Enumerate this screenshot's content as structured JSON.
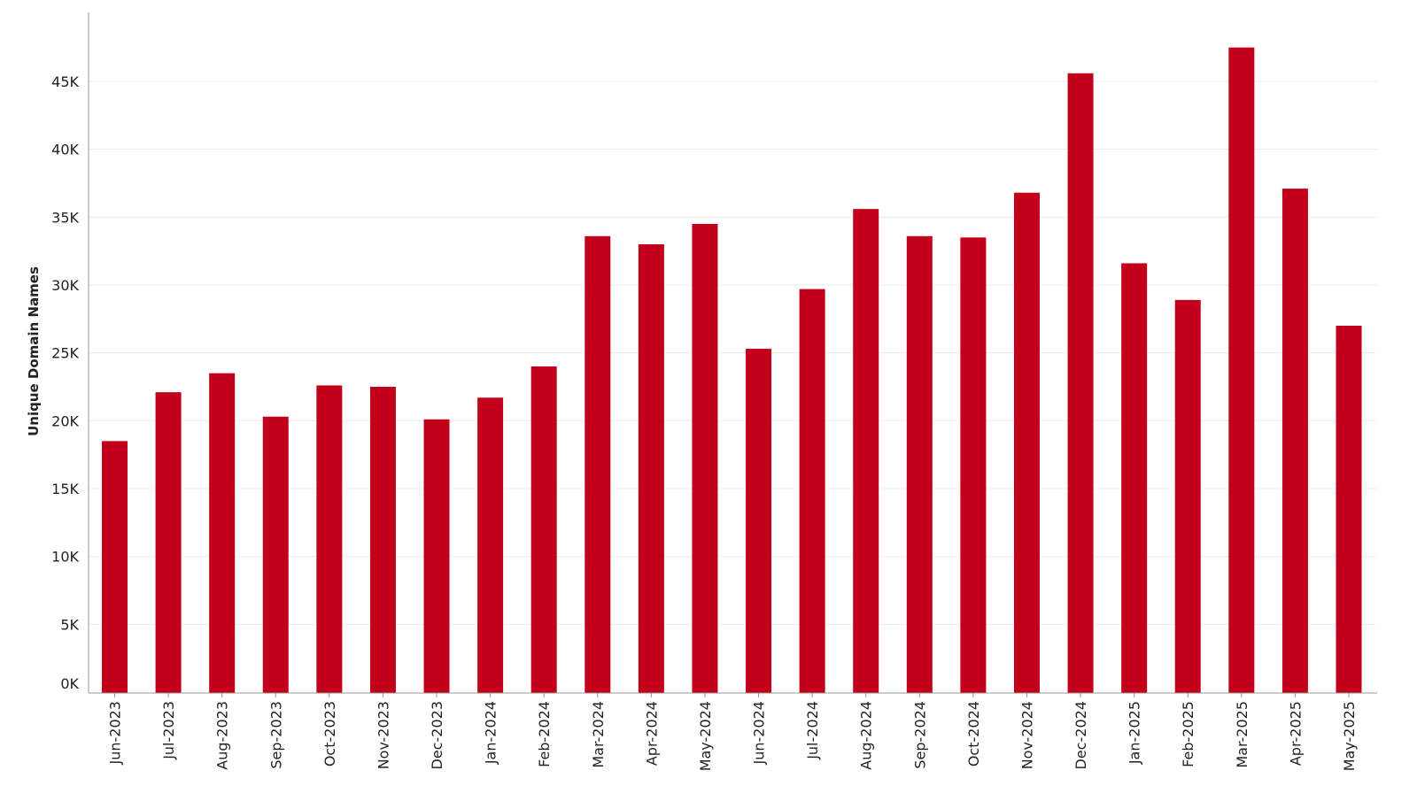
{
  "chart_data": {
    "type": "bar",
    "title": "",
    "xlabel": "",
    "ylabel": "Unique Domain Names",
    "categories": [
      "Jun-2023",
      "Jul-2023",
      "Aug-2023",
      "Sep-2023",
      "Oct-2023",
      "Nov-2023",
      "Dec-2023",
      "Jan-2024",
      "Feb-2024",
      "Mar-2024",
      "Apr-2024",
      "May-2024",
      "Jun-2024",
      "Jul-2024",
      "Aug-2024",
      "Sep-2024",
      "Oct-2024",
      "Nov-2024",
      "Dec-2024",
      "Jan-2025",
      "Feb-2025",
      "Mar-2025",
      "Apr-2025",
      "May-2025"
    ],
    "values": [
      18500,
      22100,
      23500,
      20300,
      22600,
      22500,
      20100,
      21700,
      24000,
      33600,
      33000,
      34500,
      25300,
      29700,
      35600,
      33600,
      33500,
      36800,
      45600,
      31600,
      28900,
      47500,
      37100,
      27000
    ],
    "ylim": [
      0,
      50000
    ],
    "yticks": [
      0,
      5000,
      10000,
      15000,
      20000,
      25000,
      30000,
      35000,
      40000,
      45000
    ],
    "ytick_labels": [
      "0K",
      "5K",
      "10K",
      "15K",
      "20K",
      "25K",
      "30K",
      "35K",
      "40K",
      "45K"
    ],
    "bar_color": "#C3001A",
    "grid": true,
    "legend": "none"
  }
}
